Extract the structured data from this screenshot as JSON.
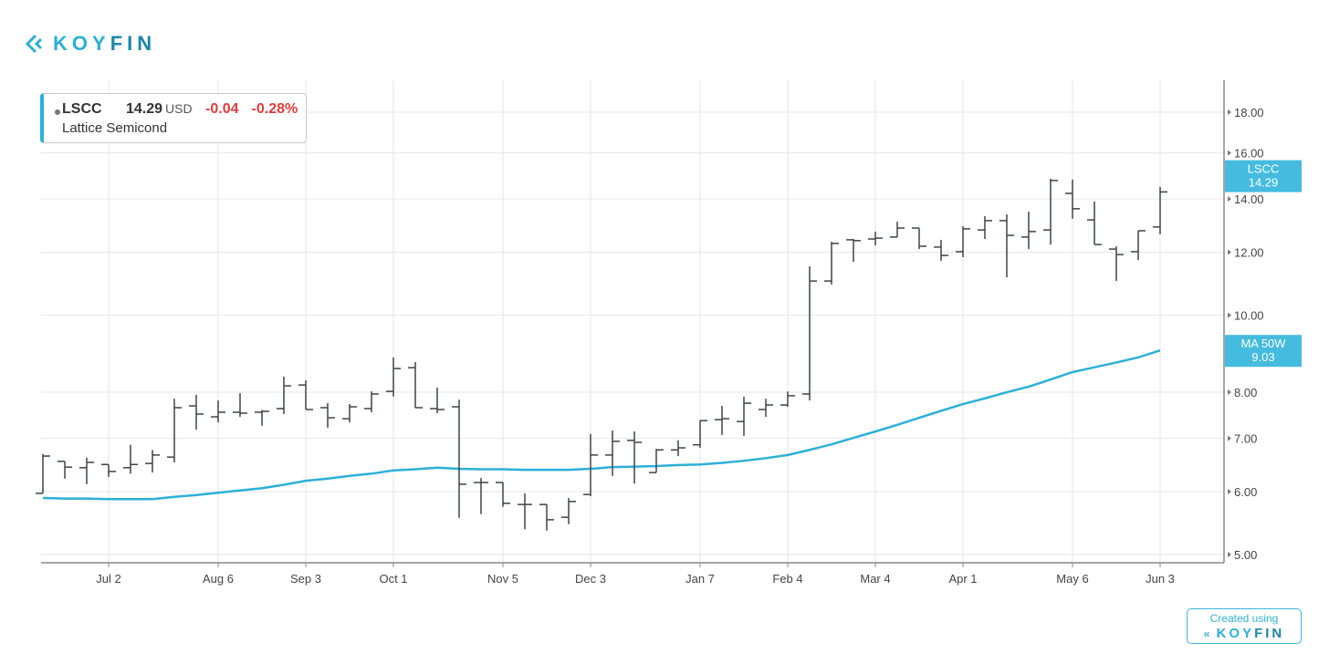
{
  "brand": {
    "logo_text_a": "KOY",
    "logo_text_b": "FIN",
    "credit_label": "Created using"
  },
  "legend": {
    "ticker": "LSCC",
    "price": "14.29",
    "currency": "USD",
    "change": "-0.04",
    "change_pct": "-0.28%",
    "company": "Lattice Semicond"
  },
  "colors": {
    "accent": "#2bb0d8",
    "badge": "#45bbe0",
    "bars": "#3d4446",
    "negative": "#e03c3c",
    "grid": "#e6e6e6"
  },
  "chart_data": {
    "type": "ohlc",
    "scale": "log",
    "ylim": [
      4.88,
      19.6
    ],
    "y_ticks": [
      "5.00",
      "6.00",
      "7.00",
      "8.00",
      "10.00",
      "12.00",
      "14.00",
      "16.00",
      "18.00"
    ],
    "x_ticks": [
      {
        "label": "Jul 2",
        "index": 3
      },
      {
        "label": "Aug 6",
        "index": 8
      },
      {
        "label": "Sep 3",
        "index": 12
      },
      {
        "label": "Oct 1",
        "index": 16
      },
      {
        "label": "Nov 5",
        "index": 21
      },
      {
        "label": "Dec 3",
        "index": 25
      },
      {
        "label": "Jan 7",
        "index": 30
      },
      {
        "label": "Feb 4",
        "index": 34
      },
      {
        "label": "Mar 4",
        "index": 38
      },
      {
        "label": "Apr 1",
        "index": 42
      },
      {
        "label": "May 6",
        "index": 47
      },
      {
        "label": "Jun 3",
        "index": 51
      }
    ],
    "grid": true,
    "series": [
      {
        "name": "LSCC",
        "badge_label": "LSCC",
        "badge_value": "14.29",
        "ohlc": [
          [
            5.97,
            6.69,
            5.97,
            6.65
          ],
          [
            6.55,
            6.55,
            6.23,
            6.44
          ],
          [
            6.43,
            6.62,
            6.13,
            6.53
          ],
          [
            6.49,
            6.49,
            6.26,
            6.36
          ],
          [
            6.43,
            6.87,
            6.32,
            6.49
          ],
          [
            6.51,
            6.77,
            6.34,
            6.67
          ],
          [
            6.63,
            7.85,
            6.53,
            7.65
          ],
          [
            7.69,
            7.94,
            7.18,
            7.51
          ],
          [
            7.45,
            7.81,
            7.33,
            7.55
          ],
          [
            7.55,
            7.98,
            7.45,
            7.53
          ],
          [
            7.55,
            7.6,
            7.26,
            7.57
          ],
          [
            7.63,
            8.37,
            7.51,
            8.15
          ],
          [
            8.17,
            8.28,
            7.61,
            7.61
          ],
          [
            7.65,
            7.75,
            7.22,
            7.43
          ],
          [
            7.41,
            7.73,
            7.33,
            7.67
          ],
          [
            7.63,
            8.02,
            7.55,
            7.96
          ],
          [
            8.02,
            8.85,
            7.9,
            8.57
          ],
          [
            8.59,
            8.73,
            7.65,
            7.65
          ],
          [
            7.63,
            8.11,
            7.53,
            7.61
          ],
          [
            7.67,
            7.83,
            5.56,
            6.13
          ],
          [
            6.16,
            6.24,
            5.62,
            6.16
          ],
          [
            6.16,
            6.16,
            5.74,
            5.8
          ],
          [
            5.78,
            5.97,
            5.38,
            5.78
          ],
          [
            5.78,
            5.78,
            5.36,
            5.53
          ],
          [
            5.57,
            5.89,
            5.46,
            5.83
          ],
          [
            5.95,
            7.09,
            5.92,
            6.67
          ],
          [
            6.67,
            7.16,
            6.28,
            6.94
          ],
          [
            6.96,
            7.14,
            6.14,
            6.92
          ],
          [
            6.34,
            6.79,
            6.34,
            6.77
          ],
          [
            6.77,
            6.96,
            6.65,
            6.81
          ],
          [
            6.87,
            7.37,
            6.81,
            7.37
          ],
          [
            7.39,
            7.69,
            7.07,
            7.41
          ],
          [
            7.35,
            7.9,
            7.05,
            7.75
          ],
          [
            7.61,
            7.85,
            7.45,
            7.71
          ],
          [
            7.71,
            8.02,
            7.67,
            7.92
          ],
          [
            7.96,
            11.52,
            7.81,
            11.04
          ],
          [
            11.04,
            12.37,
            10.93,
            12.31
          ],
          [
            12.44,
            12.47,
            11.67,
            12.41
          ],
          [
            12.47,
            12.74,
            12.24,
            12.5
          ],
          [
            12.54,
            13.11,
            12.54,
            12.87
          ],
          [
            12.87,
            12.87,
            12.11,
            12.21
          ],
          [
            12.18,
            12.44,
            11.7,
            11.89
          ],
          [
            12.02,
            12.94,
            11.83,
            12.84
          ],
          [
            12.8,
            13.32,
            12.47,
            13.15
          ],
          [
            13.15,
            13.39,
            11.16,
            12.6
          ],
          [
            12.54,
            13.5,
            12.11,
            12.74
          ],
          [
            12.8,
            14.85,
            12.27,
            14.77
          ],
          [
            14.23,
            14.81,
            13.22,
            13.61
          ],
          [
            13.18,
            13.9,
            12.27,
            12.27
          ],
          [
            12.11,
            12.21,
            11.04,
            11.92
          ],
          [
            12.02,
            12.77,
            11.73,
            12.77
          ],
          [
            12.91,
            14.5,
            12.64,
            14.29
          ]
        ]
      },
      {
        "name": "MA 50W",
        "badge_label": "MA 50W",
        "badge_value": "9.03",
        "values": [
          5.89,
          5.88,
          5.88,
          5.87,
          5.87,
          5.87,
          5.91,
          5.94,
          5.98,
          6.02,
          6.06,
          6.12,
          6.19,
          6.23,
          6.28,
          6.32,
          6.38,
          6.4,
          6.43,
          6.41,
          6.4,
          6.4,
          6.39,
          6.39,
          6.39,
          6.41,
          6.44,
          6.45,
          6.46,
          6.48,
          6.49,
          6.52,
          6.56,
          6.61,
          6.67,
          6.77,
          6.88,
          7.01,
          7.14,
          7.28,
          7.43,
          7.58,
          7.73,
          7.86,
          8.0,
          8.13,
          8.3,
          8.48,
          8.6,
          8.72,
          8.85,
          9.03
        ]
      }
    ]
  }
}
